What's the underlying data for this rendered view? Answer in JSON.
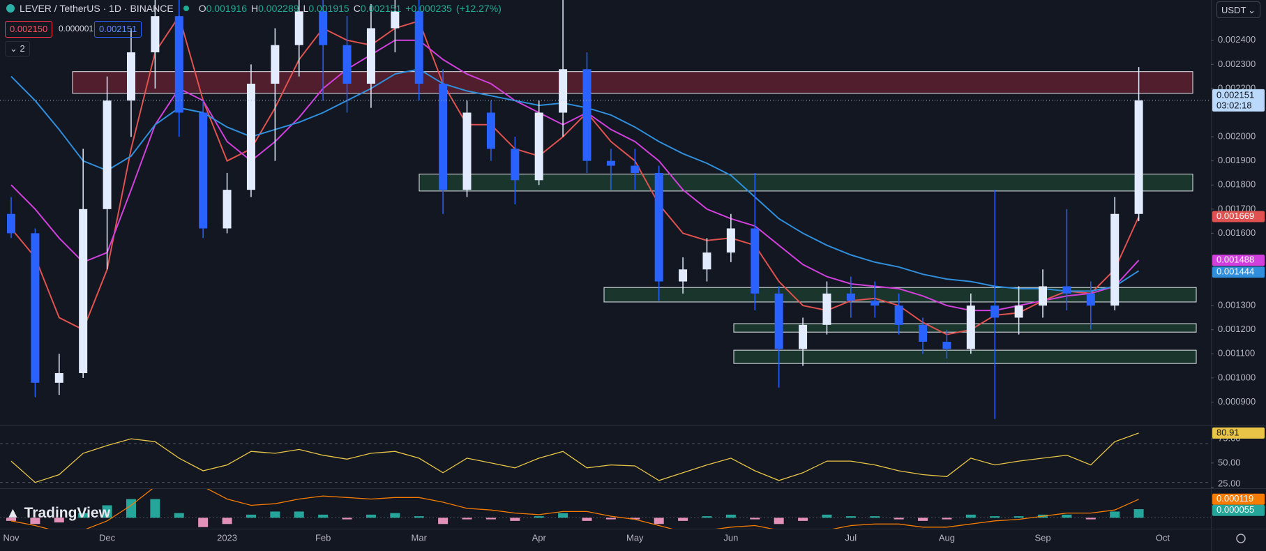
{
  "header": {
    "title": "LEVER / TetherUS · 1D · BINANCE",
    "ohlc": [
      {
        "label": "O",
        "value": 0.001916
      },
      {
        "label": "H",
        "value": 0.002289
      },
      {
        "label": "L",
        "value": 0.001915
      },
      {
        "label": "C",
        "value": 0.002151
      }
    ],
    "change": {
      "value": 0.000235,
      "label": "+0.000235"
    },
    "change_percent": {
      "value": 12.27,
      "label": "(+12.27%)"
    },
    "sell_price": {
      "value": 0.00215,
      "label": "0.002150"
    },
    "spread": {
      "value": 1e-06,
      "label": "0.000001"
    },
    "buy_price": 0.002151,
    "indicator_count": 2,
    "currency": "USDT",
    "brand": "TradingView"
  },
  "chart_data": {
    "type": "candlestick",
    "categories": [
      "Nov",
      null,
      null,
      null,
      "Dec",
      null,
      null,
      null,
      null,
      "2023",
      null,
      null,
      null,
      "Feb",
      null,
      null,
      null,
      "Mar",
      null,
      null,
      null,
      null,
      "Apr",
      null,
      null,
      null,
      "May",
      null,
      null,
      null,
      "Jun",
      null,
      null,
      null,
      null,
      "Jul",
      null,
      null,
      null,
      "Aug",
      null,
      null,
      null,
      "Sep",
      null,
      null,
      null,
      null,
      "Oct"
    ],
    "open": [
      0.00168,
      0.0016,
      0.00098,
      0.00102,
      0.0017,
      0.00215,
      0.00235,
      0.0025,
      0.0021,
      0.00162,
      0.00178,
      0.00222,
      0.00238,
      0.00252,
      0.00238,
      0.00222,
      0.00245,
      0.00252,
      0.00222,
      0.00178,
      0.0021,
      0.00195,
      0.00182,
      0.0021,
      0.00228,
      0.0019,
      0.00188,
      0.00185,
      0.0014,
      0.00145,
      0.00152,
      0.00162,
      0.00135,
      0.00112,
      0.00122,
      0.00135,
      0.00132,
      0.0013,
      0.00122,
      0.00115,
      0.00112,
      0.0013,
      0.00125,
      0.0013,
      0.00138,
      0.00135,
      0.0013,
      0.00168,
      null
    ],
    "high": [
      0.00175,
      0.00162,
      0.0011,
      0.00195,
      0.00225,
      0.00245,
      0.00262,
      0.00258,
      0.00215,
      0.00185,
      0.0023,
      0.00245,
      0.00262,
      0.00262,
      0.0025,
      0.00255,
      0.00262,
      0.00258,
      0.00228,
      0.00215,
      0.00215,
      0.002,
      0.00215,
      0.00262,
      0.00235,
      0.00195,
      0.00195,
      0.00188,
      0.0015,
      0.00158,
      0.00168,
      0.00185,
      0.00138,
      0.00125,
      0.0014,
      0.00142,
      0.0014,
      0.00135,
      0.00125,
      0.0012,
      0.00135,
      0.00178,
      0.00138,
      0.00145,
      0.0017,
      0.0014,
      0.00175,
      0.002289,
      null
    ],
    "low": [
      0.00158,
      0.00092,
      0.00093,
      0.001,
      0.00145,
      0.002,
      0.0022,
      0.002,
      0.00158,
      0.0016,
      0.00175,
      0.0019,
      0.00225,
      0.00215,
      0.0021,
      0.00212,
      0.00235,
      0.00215,
      0.00168,
      0.00175,
      0.0019,
      0.00172,
      0.0018,
      0.002,
      0.00185,
      0.00178,
      0.00178,
      0.00132,
      0.00135,
      0.0014,
      0.00148,
      0.00128,
      0.00096,
      0.00105,
      0.00118,
      0.00125,
      0.00125,
      0.00118,
      0.0011,
      0.00108,
      0.0011,
      0.00083,
      0.00118,
      0.00125,
      0.00128,
      0.0012,
      0.00128,
      0.00165,
      null
    ],
    "close": [
      0.0016,
      0.00098,
      0.00102,
      0.0017,
      0.00215,
      0.00235,
      0.0025,
      0.0021,
      0.00162,
      0.00178,
      0.00222,
      0.00238,
      0.00252,
      0.00238,
      0.00222,
      0.00245,
      0.00252,
      0.00222,
      0.00178,
      0.0021,
      0.00195,
      0.00182,
      0.0021,
      0.00228,
      0.0019,
      0.00188,
      0.00185,
      0.0014,
      0.00145,
      0.00152,
      0.00162,
      0.00135,
      0.00112,
      0.00122,
      0.00135,
      0.00132,
      0.0013,
      0.00122,
      0.00115,
      0.00112,
      0.0013,
      0.00125,
      0.0013,
      0.00138,
      0.00135,
      0.0013,
      0.00168,
      0.002151,
      null
    ],
    "up_color": "#e3ecff",
    "down_color": "#2962ff",
    "countdown": "03:02:18",
    "moving_averages": [
      {
        "color": "#e0524f",
        "values": [
          0.00162,
          0.0015,
          0.00125,
          0.0012,
          0.00145,
          0.00195,
          0.00235,
          0.0025,
          0.00215,
          0.0019,
          0.00195,
          0.00212,
          0.00232,
          0.00245,
          0.0024,
          0.00238,
          0.00245,
          0.00248,
          0.00222,
          0.00205,
          0.00205,
          0.00195,
          0.00192,
          0.002,
          0.0021,
          0.00198,
          0.0019,
          0.00172,
          0.0016,
          0.00157,
          0.00158,
          0.00155,
          0.0014,
          0.0013,
          0.00128,
          0.00132,
          0.00133,
          0.0013,
          0.00123,
          0.00118,
          0.0012,
          0.00126,
          0.00127,
          0.00132,
          0.00136,
          0.00135,
          0.00145,
          0.001669,
          null
        ]
      },
      {
        "color": "#d140dc",
        "values": [
          0.0018,
          0.0017,
          0.00158,
          0.00148,
          0.00152,
          0.00178,
          0.00205,
          0.0022,
          0.00215,
          0.00198,
          0.0019,
          0.00198,
          0.00208,
          0.0022,
          0.00228,
          0.00234,
          0.0024,
          0.0024,
          0.00232,
          0.00226,
          0.00222,
          0.00215,
          0.0021,
          0.00205,
          0.0021,
          0.00203,
          0.00198,
          0.0019,
          0.00178,
          0.0017,
          0.00166,
          0.00163,
          0.00155,
          0.00147,
          0.00142,
          0.00139,
          0.00138,
          0.00137,
          0.00134,
          0.0013,
          0.00128,
          0.00128,
          0.0013,
          0.00132,
          0.00134,
          0.00135,
          0.00138,
          0.001488,
          null
        ]
      },
      {
        "color": "#2f8fdc",
        "values": [
          0.00225,
          0.00215,
          0.00203,
          0.0019,
          0.00186,
          0.00192,
          0.00205,
          0.00212,
          0.0021,
          0.00204,
          0.002,
          0.00203,
          0.00206,
          0.0021,
          0.00215,
          0.0022,
          0.00226,
          0.00228,
          0.00222,
          0.00219,
          0.00217,
          0.00215,
          0.00213,
          0.00214,
          0.00212,
          0.00209,
          0.00204,
          0.00198,
          0.00193,
          0.00189,
          0.00184,
          0.00175,
          0.00166,
          0.0016,
          0.00155,
          0.00151,
          0.00148,
          0.00146,
          0.00143,
          0.00141,
          0.0014,
          0.00138,
          0.00137,
          0.00137,
          0.00136,
          0.00136,
          0.00138,
          0.001444,
          null
        ]
      }
    ],
    "zones": [
      {
        "top": 0.00227,
        "bottom": 0.00218,
        "color": "#7a2336"
      },
      {
        "top": 0.001845,
        "bottom": 0.001775,
        "color": "#1e4a34"
      },
      {
        "top": 0.001375,
        "bottom": 0.001315,
        "color": "#1e4a34"
      },
      {
        "top": 0.001225,
        "bottom": 0.00119,
        "color": "#1e4a34"
      },
      {
        "top": 0.001115,
        "bottom": 0.00106,
        "color": "#1e4a34"
      }
    ],
    "ylim": [
      0.000803,
      0.002567
    ],
    "yticks": [
      {
        "value": 0.0024,
        "label": "0.002400"
      },
      {
        "value": 0.0023,
        "label": "0.002300"
      },
      {
        "value": 0.0022,
        "label": "0.002200"
      },
      {
        "value": 0.002,
        "label": "0.002000"
      },
      {
        "value": 0.0019,
        "label": "0.001900"
      },
      {
        "value": 0.0018,
        "label": "0.001800"
      },
      {
        "value": 0.0017,
        "label": "0.001700"
      },
      {
        "value": 0.0016,
        "label": "0.001600"
      },
      {
        "value": 0.0013,
        "label": "0.001300"
      },
      {
        "value": 0.0012,
        "label": "0.001200"
      },
      {
        "value": 0.0011,
        "label": "0.001100"
      },
      {
        "value": 0.001,
        "label": "0.001000"
      },
      {
        "value": 0.0009,
        "label": "0.000900"
      }
    ],
    "rsi": {
      "color": "#e8c547",
      "values": [
        52,
        30,
        38,
        60,
        68,
        75,
        72,
        55,
        42,
        48,
        62,
        60,
        64,
        58,
        54,
        60,
        62,
        55,
        40,
        55,
        50,
        45,
        55,
        62,
        45,
        48,
        47,
        32,
        40,
        48,
        55,
        42,
        32,
        40,
        52,
        52,
        48,
        42,
        38,
        36,
        55,
        48,
        52,
        55,
        58,
        48,
        72,
        80.91,
        null
      ],
      "levels": [
        70,
        30
      ],
      "ylim": [
        24,
        88
      ],
      "yticks": [
        {
          "value": 75,
          "label": "75.00"
        },
        {
          "value": 50,
          "label": "50.00"
        },
        {
          "value": 25,
          "label": "25.00"
        }
      ]
    },
    "macd": {
      "positive_color": "#26a69a",
      "negative_color": "#e391b8",
      "signal_color": "#f57c00",
      "histogram": [
        -2e-05,
        -4e-05,
        -3e-05,
        3e-05,
        8e-05,
        0.00012,
        0.00012,
        3e-05,
        -6e-05,
        -4e-05,
        2e-05,
        4e-05,
        4e-05,
        2e-05,
        -1e-05,
        2e-05,
        3e-05,
        1e-05,
        -4e-05,
        -1e-05,
        -1e-05,
        -2e-05,
        1e-05,
        3e-05,
        -2e-05,
        -1e-05,
        -1e-05,
        -4e-05,
        -2e-05,
        1e-05,
        2e-05,
        -1e-05,
        -4e-05,
        -2e-05,
        2e-05,
        1e-05,
        1e-05,
        -1e-05,
        -2e-05,
        -1e-05,
        2e-05,
        1e-05,
        1e-05,
        2e-05,
        2e-05,
        -1e-05,
        4e-05,
        5.5e-05,
        null
      ],
      "signal": [
        -2e-05,
        -5e-05,
        -9e-05,
        -8e-05,
        -2e-05,
        8e-05,
        0.0002,
        0.00024,
        0.0002,
        0.00012,
        8e-05,
        9e-05,
        0.00012,
        0.00014,
        0.00013,
        0.00012,
        0.00013,
        0.00013,
        0.0001,
        6e-05,
        5e-05,
        3e-05,
        2e-05,
        4e-05,
        4e-05,
        1e-05,
        -1e-05,
        -5e-05,
        -9e-05,
        -8e-05,
        -6e-05,
        -5e-05,
        -8e-05,
        -0.0001,
        -8e-05,
        -5e-05,
        -4e-05,
        -4e-05,
        -6e-05,
        -6e-05,
        -4e-05,
        -2e-05,
        -1e-05,
        1e-05,
        3e-05,
        3e-05,
        5e-05,
        0.000119,
        null
      ],
      "ylim": [
        -7e-05,
        0.000185
      ]
    }
  }
}
